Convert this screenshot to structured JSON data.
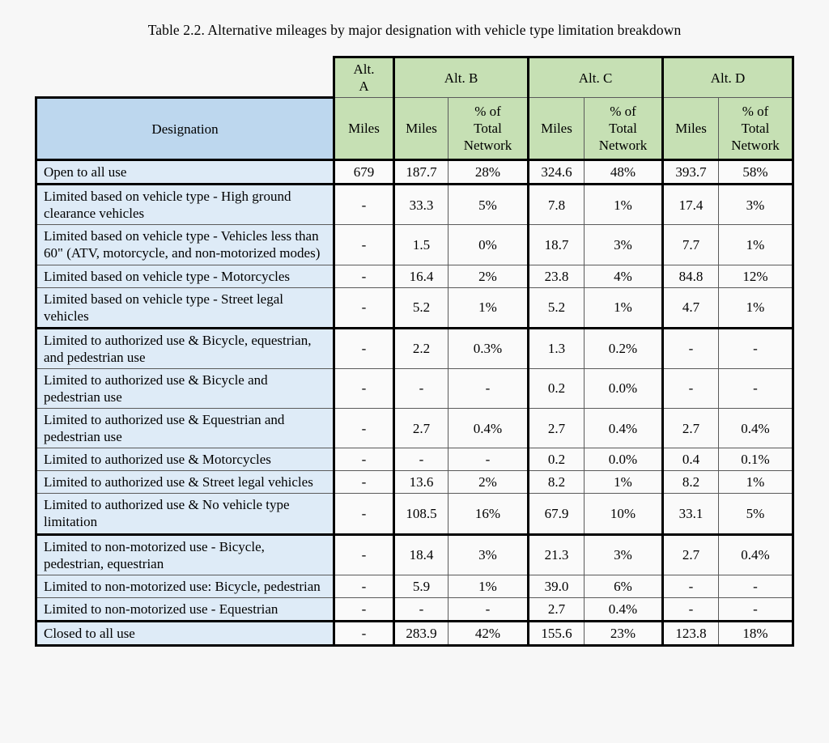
{
  "title": "Table 2.2. Alternative mileages by major designation with vehicle type limitation breakdown",
  "table": {
    "alt_headers": [
      "Alt.\nA",
      "Alt. B",
      "Alt. C",
      "Alt. D"
    ],
    "designation_header": "Designation",
    "miles_header": "Miles",
    "pct_header": "% of\nTotal\nNetwork",
    "rows": [
      {
        "designation": "Open to all use",
        "values": [
          "679",
          "187.7",
          "28%",
          "324.6",
          "48%",
          "393.7",
          "58%"
        ]
      },
      {
        "designation": "Limited based on vehicle type - High ground clearance vehicles",
        "values": [
          "-",
          "33.3",
          "5%",
          "7.8",
          "1%",
          "17.4",
          "3%"
        ]
      },
      {
        "designation": "Limited based on vehicle type - Vehicles less than 60\" (ATV, motorcycle, and non-motorized modes)",
        "values": [
          "-",
          "1.5",
          "0%",
          "18.7",
          "3%",
          "7.7",
          "1%"
        ]
      },
      {
        "designation": "Limited based on vehicle type - Motorcycles",
        "values": [
          "-",
          "16.4",
          "2%",
          "23.8",
          "4%",
          "84.8",
          "12%"
        ]
      },
      {
        "designation": "Limited based on vehicle type - Street legal vehicles",
        "values": [
          "-",
          "5.2",
          "1%",
          "5.2",
          "1%",
          "4.7",
          "1%"
        ]
      },
      {
        "designation": "Limited to authorized use & Bicycle, equestrian, and pedestrian use",
        "values": [
          "-",
          "2.2",
          "0.3%",
          "1.3",
          "0.2%",
          "-",
          "-"
        ]
      },
      {
        "designation": "Limited to authorized use & Bicycle and pedestrian use",
        "values": [
          "-",
          "-",
          "-",
          "0.2",
          "0.0%",
          "-",
          "-"
        ]
      },
      {
        "designation": "Limited to authorized use & Equestrian and pedestrian use",
        "values": [
          "-",
          "2.7",
          "0.4%",
          "2.7",
          "0.4%",
          "2.7",
          "0.4%"
        ]
      },
      {
        "designation": "Limited to authorized use & Motorcycles",
        "values": [
          "-",
          "-",
          "-",
          "0.2",
          "0.0%",
          "0.4",
          "0.1%"
        ]
      },
      {
        "designation": "Limited to authorized use & Street legal vehicles",
        "values": [
          "-",
          "13.6",
          "2%",
          "8.2",
          "1%",
          "8.2",
          "1%"
        ]
      },
      {
        "designation": "Limited to authorized use & No vehicle type limitation",
        "values": [
          "-",
          "108.5",
          "16%",
          "67.9",
          "10%",
          "33.1",
          "5%"
        ]
      },
      {
        "designation": "Limited to non-motorized use - Bicycle, pedestrian, equestrian",
        "values": [
          "-",
          "18.4",
          "3%",
          "21.3",
          "3%",
          "2.7",
          "0.4%"
        ]
      },
      {
        "designation": "Limited to non-motorized use: Bicycle, pedestrian",
        "values": [
          "-",
          "5.9",
          "1%",
          "39.0",
          "6%",
          "-",
          "-"
        ]
      },
      {
        "designation": "Limited to non-motorized use - Equestrian",
        "values": [
          "-",
          "-",
          "-",
          "2.7",
          "0.4%",
          "-",
          "-"
        ]
      },
      {
        "designation": "Closed to all use",
        "values": [
          "-",
          "283.9",
          "42%",
          "155.6",
          "23%",
          "123.8",
          "18%"
        ]
      }
    ]
  },
  "colors": {
    "header_green": "#c6e0b4",
    "header_blue": "#bdd7ee",
    "designation_blue": "#deebf7",
    "cell_background": "#fafafa",
    "page_background": "#f7f7f7",
    "thick_border": "#000000",
    "thin_border": "#5a5a5a"
  }
}
